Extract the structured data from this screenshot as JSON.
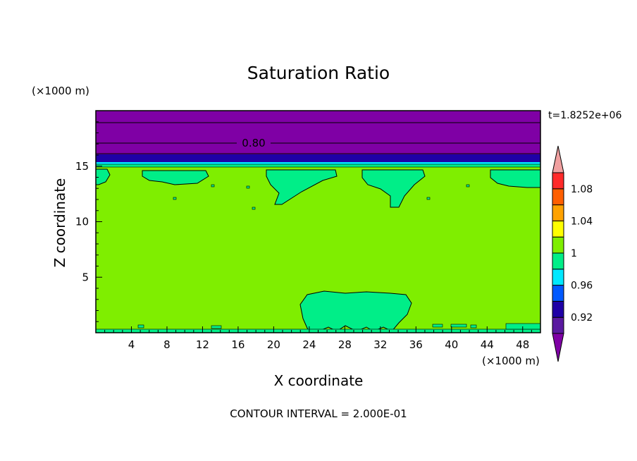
{
  "chart_data": {
    "type": "heatmap",
    "title": "Saturation Ratio",
    "xlabel": "X coordinate",
    "ylabel": "Z coordinate",
    "x_units": "(×1000 m)",
    "y_units": "(×1000 m)",
    "time_label": "t=1.8252e+06",
    "footer": "CONTOUR INTERVAL = 2.000E-01",
    "xlim": [
      0,
      50
    ],
    "ylim": [
      0,
      20
    ],
    "x_ticks": [
      "4",
      "8",
      "12",
      "16",
      "20",
      "24",
      "28",
      "32",
      "36",
      "40",
      "44",
      "48"
    ],
    "y_ticks": [
      "5",
      "10",
      "15"
    ],
    "contour_label": "0.80",
    "colorbar": {
      "labels": [
        "1.08",
        "1.04",
        "1",
        "0.96",
        "0.92"
      ],
      "levels": [
        0.9,
        0.92,
        0.94,
        0.96,
        0.98,
        1.0,
        1.02,
        1.04,
        1.06,
        1.08,
        1.1
      ],
      "colors": [
        "#7f00a5",
        "#5a1aa0",
        "#1f00a6",
        "#0059ff",
        "#00e8ff",
        "#00ee88",
        "#7fee00",
        "#ffff00",
        "#ffa200",
        "#ff5f00",
        "#ff2a2a",
        "#f0a0a0"
      ]
    },
    "bands": [
      {
        "z_from": 15.6,
        "z_to": 20.0,
        "level": "<0.90",
        "color": "#7f00a5"
      },
      {
        "z_from": 15.2,
        "z_to": 15.6,
        "level": "0.92-0.94",
        "color": "#1f00a6"
      },
      {
        "z_from": 15.0,
        "z_to": 15.2,
        "level": "0.96-0.98",
        "color": "#00e8ff"
      },
      {
        "z_from": 0.0,
        "z_to": 15.0,
        "level": "1.00-1.02",
        "color": "#7fee00"
      }
    ],
    "contour_lines_z": [
      16.9,
      18.9
    ]
  }
}
